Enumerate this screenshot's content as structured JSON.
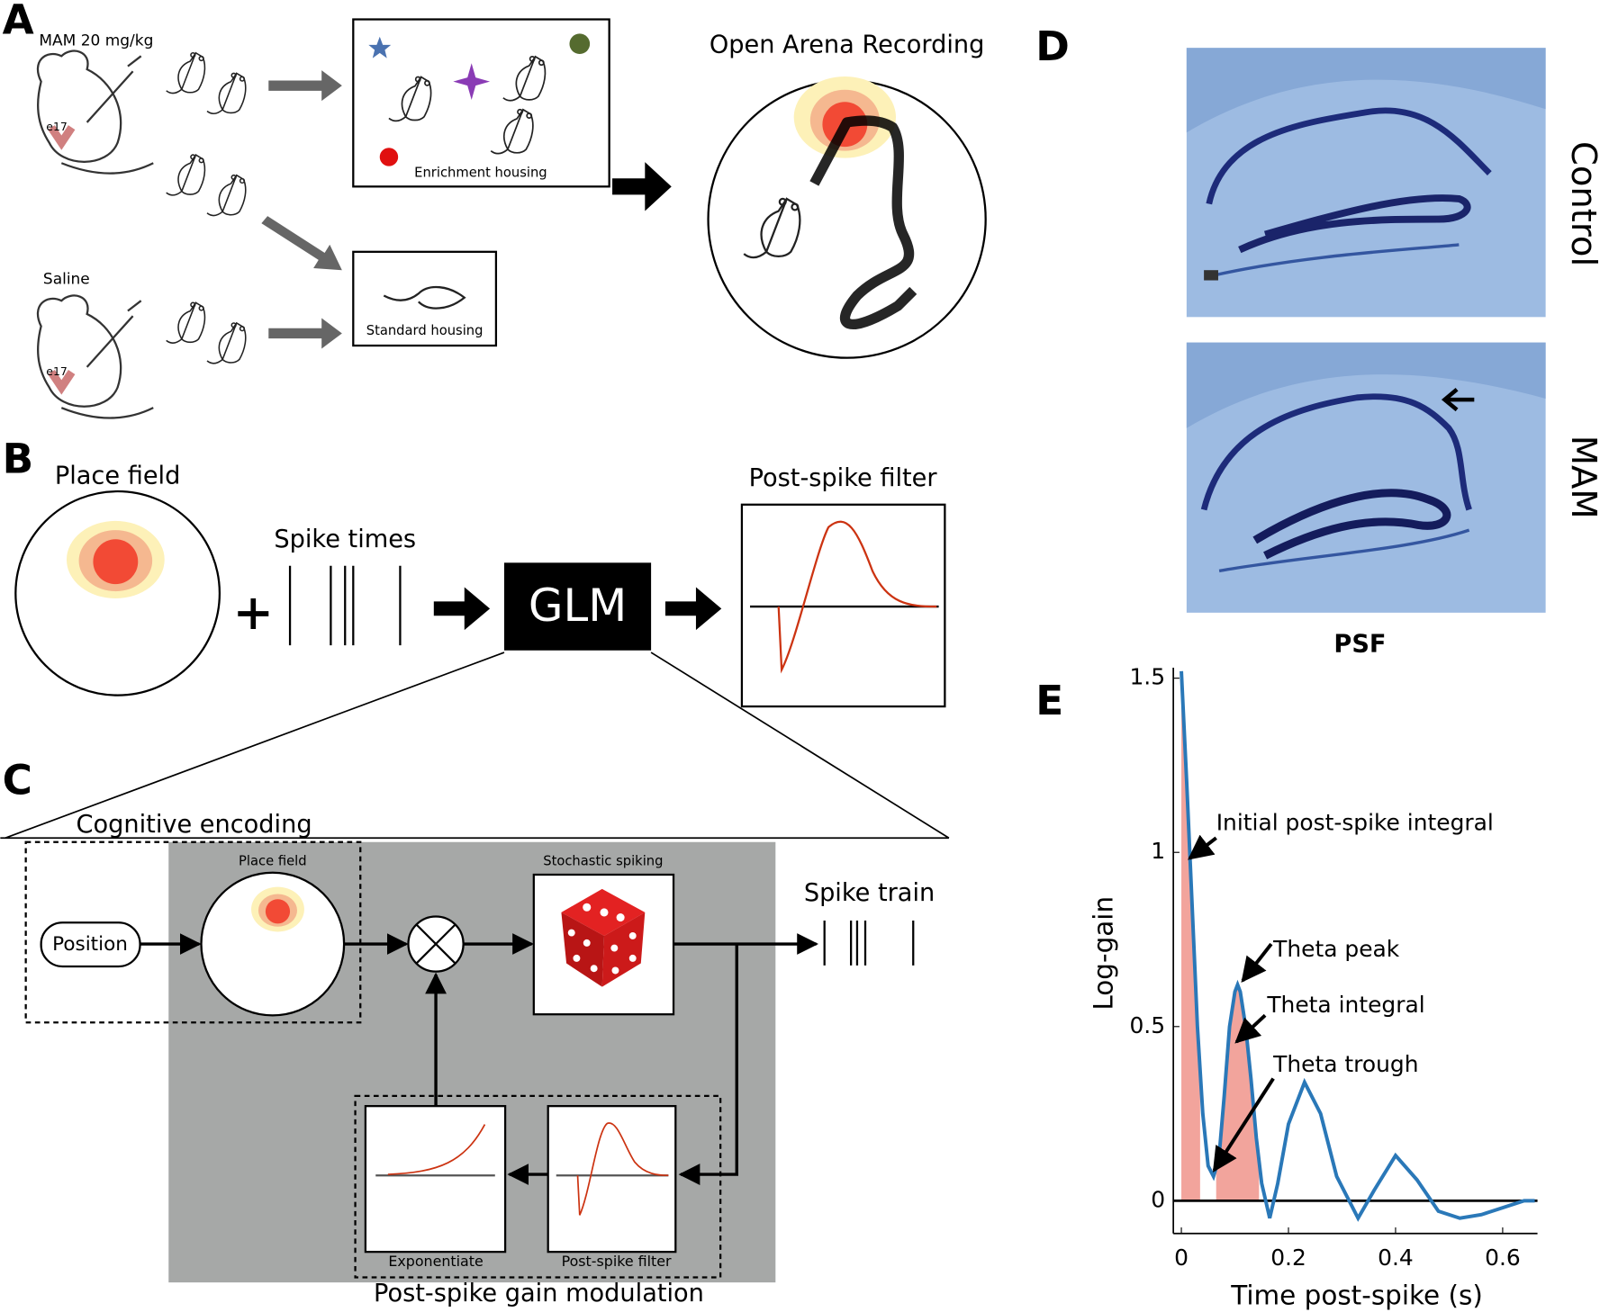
{
  "panel_a": {
    "label": "A",
    "mam_dose": "MAM 20 mg/kg",
    "mam_age": "e17",
    "saline": "Saline",
    "saline_age": "e17",
    "enrichment": "Enrichment housing",
    "standard": "Standard housing",
    "arena": "Open Arena Recording"
  },
  "panel_b": {
    "label": "B",
    "place_field": "Place field",
    "spike_times": "Spike times",
    "glm": "GLM",
    "post_spike_filter": "Post-spike filter"
  },
  "panel_c": {
    "label": "C",
    "cognitive_encoding": "Cognitive encoding",
    "place_field": "Place field",
    "position": "Position",
    "stochastic_spiking": "Stochastic spiking",
    "spike_train": "Spike train",
    "exponentiate": "Exponentiate",
    "post_spike_filter": "Post-spike filter",
    "gain_modulation": "Post-spike gain modulation"
  },
  "panel_d": {
    "label": "D",
    "control": "Control",
    "mam": "MAM"
  },
  "panel_e": {
    "label": "E"
  },
  "chart_data": {
    "type": "line",
    "title": "PSF",
    "y_label": "Log-gain",
    "x_label": "Time post-spike (s)",
    "x": [
      0,
      0.01,
      0.02,
      0.03,
      0.04,
      0.05,
      0.06,
      0.07,
      0.08,
      0.09,
      0.1,
      0.105,
      0.11,
      0.12,
      0.13,
      0.14,
      0.15,
      0.165,
      0.18,
      0.2,
      0.23,
      0.26,
      0.29,
      0.33,
      0.36,
      0.4,
      0.44,
      0.48,
      0.52,
      0.56,
      0.6,
      0.64,
      0.66
    ],
    "series": [
      {
        "name": "PSF",
        "color": "#2a78b8",
        "values": [
          1.52,
          1.2,
          0.85,
          0.5,
          0.25,
          0.1,
          0.07,
          0.12,
          0.3,
          0.5,
          0.6,
          0.62,
          0.6,
          0.5,
          0.35,
          0.18,
          0.05,
          -0.05,
          0.05,
          0.22,
          0.34,
          0.25,
          0.07,
          -0.05,
          0.03,
          0.13,
          0.06,
          -0.03,
          -0.05,
          -0.04,
          -0.02,
          0,
          0
        ]
      }
    ],
    "shaded": [
      [
        0,
        0.035
      ],
      [
        0.065,
        0.145
      ]
    ],
    "shade_color": "#f2a49c",
    "xlim": [
      -0.015,
      0.665
    ],
    "ylim": [
      -0.094,
      1.53
    ],
    "xticks": [
      0,
      0.2,
      0.4,
      0.6
    ],
    "yticks": [
      0,
      0.5,
      1,
      1.5
    ],
    "annotations": [
      "Initial post-spike integral",
      "Theta peak",
      "Theta integral",
      "Theta trough"
    ]
  }
}
